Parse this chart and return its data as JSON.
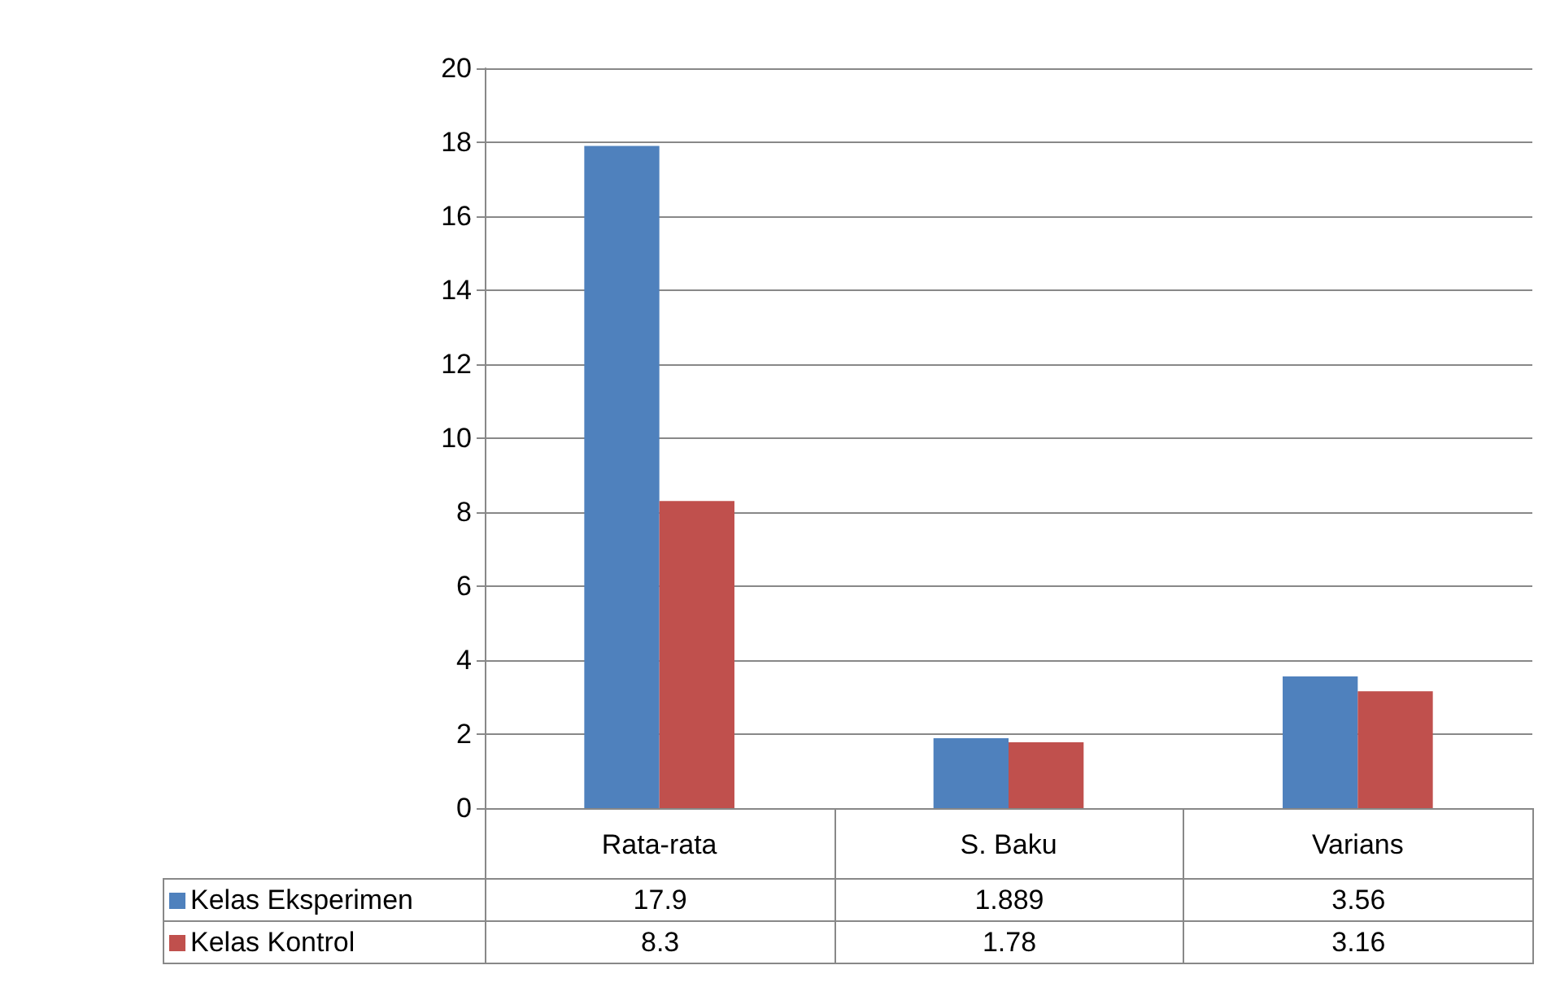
{
  "chart_data": {
    "type": "bar",
    "categories": [
      "Rata-rata",
      "S. Baku",
      "Varians"
    ],
    "series": [
      {
        "name": "Kelas Eksperimen",
        "color": "#4f81bd",
        "values": [
          17.9,
          1.889,
          3.56
        ]
      },
      {
        "name": "Kelas Kontrol",
        "color": "#c0504d",
        "values": [
          8.3,
          1.78,
          3.16
        ]
      }
    ],
    "ylim": [
      0,
      20
    ],
    "yticks": [
      0,
      2,
      4,
      6,
      8,
      10,
      12,
      14,
      16,
      18,
      20
    ],
    "grid": "y",
    "legend": "bottom left",
    "data_labels": true
  }
}
